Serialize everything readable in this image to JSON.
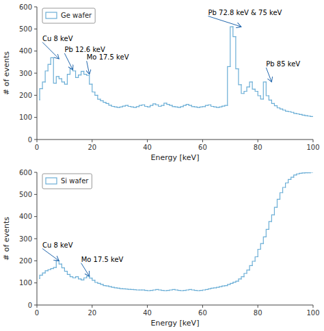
{
  "chart_data": [
    {
      "type": "step",
      "xlabel": "Energy [keV]",
      "ylabel": "# of events",
      "xlim": [
        0,
        100
      ],
      "ylim": [
        0,
        600
      ],
      "xticks": [
        0,
        20,
        40,
        60,
        80,
        100
      ],
      "yticks": [
        0,
        100,
        200,
        300,
        400,
        500,
        600
      ],
      "grid": false,
      "legend": "upper left",
      "x": [
        1,
        2,
        3,
        4,
        5,
        6,
        7,
        8,
        9,
        10,
        11,
        12,
        13,
        14,
        15,
        16,
        17,
        18,
        19,
        20,
        21,
        22,
        23,
        24,
        25,
        26,
        27,
        28,
        29,
        30,
        31,
        32,
        33,
        34,
        35,
        36,
        37,
        38,
        39,
        40,
        41,
        42,
        43,
        44,
        45,
        46,
        47,
        48,
        49,
        50,
        51,
        52,
        53,
        54,
        55,
        56,
        57,
        58,
        59,
        60,
        61,
        62,
        63,
        64,
        65,
        66,
        67,
        68,
        69,
        70,
        71,
        72,
        73,
        74,
        75,
        76,
        77,
        78,
        79,
        80,
        81,
        82,
        83,
        84,
        85,
        86,
        87,
        88,
        89,
        90,
        91,
        92,
        93,
        94,
        95,
        96,
        97,
        98,
        99,
        100
      ],
      "series": [
        {
          "name": "Ge wafer",
          "color": "#6baed6",
          "values": [
            180,
            230,
            260,
            310,
            340,
            370,
            255,
            285,
            275,
            260,
            250,
            295,
            320,
            310,
            280,
            292,
            308,
            295,
            290,
            250,
            215,
            200,
            182,
            175,
            168,
            163,
            155,
            150,
            147,
            145,
            147,
            151,
            154,
            150,
            147,
            145,
            149,
            154,
            157,
            150,
            147,
            154,
            161,
            157,
            150,
            154,
            164,
            159,
            154,
            149,
            147,
            145,
            149,
            154,
            159,
            154,
            149,
            147,
            145,
            147,
            149,
            154,
            157,
            150,
            147,
            145,
            147,
            151,
            154,
            330,
            510,
            465,
            320,
            248,
            208,
            218,
            238,
            260,
            228,
            218,
            198,
            183,
            260,
            198,
            178,
            163,
            153,
            143,
            138,
            133,
            128,
            126,
            123,
            118,
            116,
            113,
            110,
            108,
            106,
            104
          ]
        }
      ],
      "annotations": [
        {
          "text": "Cu 8 keV",
          "xy": [
            8,
            365
          ],
          "xytext": [
            2,
            440
          ]
        },
        {
          "text": "Pb 12.6 keV",
          "xy": [
            13,
            315
          ],
          "xytext": [
            10,
            390
          ]
        },
        {
          "text": "Mo 17.5 keV",
          "xy": [
            19,
            295
          ],
          "xytext": [
            18,
            355
          ]
        },
        {
          "text": "Pb 72.8 keV & 75 keV",
          "xy": [
            74,
            510
          ],
          "xytext": [
            62,
            558
          ]
        },
        {
          "text": "Pb 85 keV",
          "xy": [
            85,
            260
          ],
          "xytext": [
            83,
            325
          ]
        }
      ]
    },
    {
      "type": "step",
      "xlabel": "Energy [keV]",
      "ylabel": "# of events",
      "xlim": [
        0,
        100
      ],
      "ylim": [
        0,
        600
      ],
      "xticks": [
        0,
        20,
        40,
        60,
        80,
        100
      ],
      "yticks": [
        0,
        100,
        200,
        300,
        400,
        500,
        600
      ],
      "grid": false,
      "legend": "upper left",
      "x": [
        1,
        2,
        3,
        4,
        5,
        6,
        7,
        8,
        9,
        10,
        11,
        12,
        13,
        14,
        15,
        16,
        17,
        18,
        19,
        20,
        21,
        22,
        23,
        24,
        25,
        26,
        27,
        28,
        29,
        30,
        31,
        32,
        33,
        34,
        35,
        36,
        37,
        38,
        39,
        40,
        41,
        42,
        43,
        44,
        45,
        46,
        47,
        48,
        49,
        50,
        51,
        52,
        53,
        54,
        55,
        56,
        57,
        58,
        59,
        60,
        61,
        62,
        63,
        64,
        65,
        66,
        67,
        68,
        69,
        70,
        71,
        72,
        73,
        74,
        75,
        76,
        77,
        78,
        79,
        80,
        81,
        82,
        83,
        84,
        85,
        86,
        87,
        88,
        89,
        90,
        91,
        92,
        93,
        94,
        95,
        96,
        97,
        98,
        99,
        100
      ],
      "series": [
        {
          "name": "Si wafer",
          "color": "#6baed6",
          "values": [
            120,
            135,
            145,
            155,
            160,
            165,
            170,
            200,
            185,
            168,
            153,
            138,
            128,
            123,
            128,
            118,
            113,
            123,
            130,
            122,
            112,
            102,
            98,
            93,
            88,
            86,
            83,
            80,
            78,
            76,
            74,
            73,
            72,
            71,
            70,
            69,
            68,
            68,
            68,
            66,
            65,
            66,
            68,
            70,
            68,
            66,
            65,
            66,
            68,
            70,
            68,
            66,
            65,
            66,
            68,
            70,
            68,
            66,
            65,
            66,
            68,
            70,
            73,
            76,
            78,
            80,
            83,
            86,
            88,
            93,
            98,
            103,
            108,
            118,
            128,
            143,
            158,
            178,
            198,
            218,
            252,
            278,
            308,
            342,
            378,
            408,
            442,
            478,
            508,
            532,
            552,
            568,
            578,
            588,
            593,
            596,
            597,
            598,
            598,
            600
          ]
        }
      ],
      "annotations": [
        {
          "text": "Cu 8 keV",
          "xy": [
            8,
            200
          ],
          "xytext": [
            2,
            255
          ]
        },
        {
          "text": "Mo 17.5 keV",
          "xy": [
            19,
            130
          ],
          "xytext": [
            16,
            190
          ]
        }
      ]
    }
  ]
}
